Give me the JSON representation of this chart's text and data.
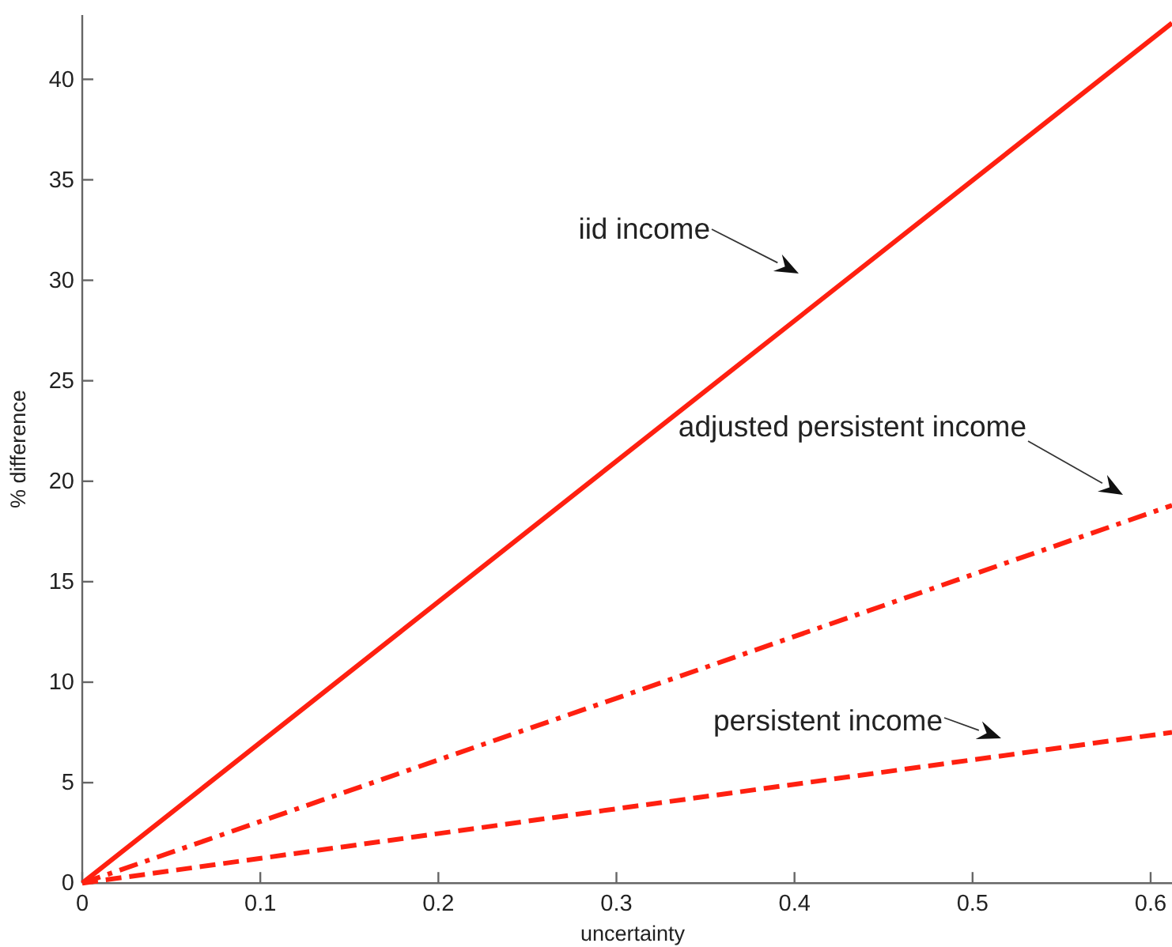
{
  "chart_data": {
    "type": "line",
    "xlabel": "uncertainty",
    "ylabel": "% difference",
    "x": [
      0,
      0.3,
      0.612
    ],
    "series": [
      {
        "color": "#ff2010",
        "values": [
          0,
          21,
          42.8
        ],
        "line_style": "solid"
      },
      {
        "color": "#ff2010",
        "values": [
          0,
          9.2,
          18.8
        ],
        "line_style": "dashdot"
      },
      {
        "color": "#ff2010",
        "values": [
          0,
          3.7,
          7.5
        ],
        "line_style": "dashed"
      }
    ],
    "xlim": [
      0,
      0.612
    ],
    "ylim": [
      0,
      43.2
    ],
    "xticks": [
      0,
      0.1,
      0.2,
      0.3,
      0.4,
      0.5,
      0.6
    ],
    "yticks": [
      0,
      5,
      10,
      15,
      20,
      25,
      30,
      35,
      40
    ],
    "grid": false,
    "marker": "none",
    "annotations": [
      "iid income",
      "adjusted persistent income",
      "persistent income"
    ]
  }
}
